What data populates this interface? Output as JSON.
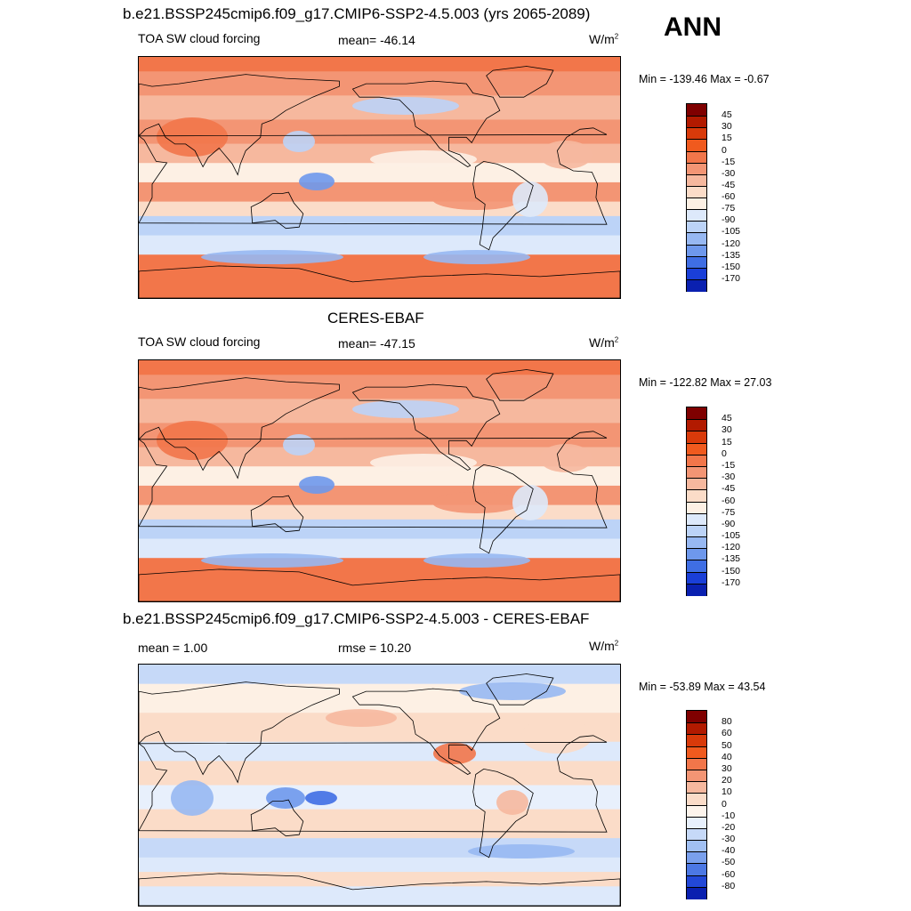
{
  "header": {
    "top_title": "b.e21.BSSP245cmip6.f09_g17.CMIP6-SSP2-4.5.003 (yrs 2065-2089)",
    "season": "ANN"
  },
  "chart_data": [
    {
      "type": "heatmap",
      "title": "b.e21.BSSP245cmip6.f09_g17.CMIP6-SSP2-4.5.003 (yrs 2065-2089)",
      "variable": "TOA SW cloud forcing",
      "stat_label": "mean= -46.14",
      "units_base": "W/m",
      "units_exp": "2",
      "minmax": "Min = -139.46 Max =  -0.67",
      "mean": -46.14,
      "min": -139.46,
      "max": -0.67,
      "colorbar_levels": [
        "45",
        "30",
        "15",
        "0",
        "-15",
        "-30",
        "-45",
        "-60",
        "-75",
        "-90",
        "-105",
        "-120",
        "-135",
        "-150",
        "-170"
      ]
    },
    {
      "type": "heatmap",
      "title": "CERES-EBAF",
      "variable": "TOA SW cloud forcing",
      "stat_label": "mean= -47.15",
      "units_base": "W/m",
      "units_exp": "2",
      "minmax": "Min = -122.82 Max =  27.03",
      "mean": -47.15,
      "min": -122.82,
      "max": 27.03,
      "colorbar_levels": [
        "45",
        "30",
        "15",
        "0",
        "-15",
        "-30",
        "-45",
        "-60",
        "-75",
        "-90",
        "-105",
        "-120",
        "-135",
        "-150",
        "-170"
      ]
    },
    {
      "type": "heatmap",
      "title": "b.e21.BSSP245cmip6.f09_g17.CMIP6-SSP2-4.5.003 - CERES-EBAF",
      "stat_left": "mean =   1.00",
      "stat_label": "rmse =  10.20",
      "units_base": "W/m",
      "units_exp": "2",
      "minmax": "Min = -53.89 Max =  43.54",
      "mean": 1.0,
      "rmse": 10.2,
      "min": -53.89,
      "max": 43.54,
      "colorbar_levels": [
        "80",
        "60",
        "50",
        "40",
        "30",
        "20",
        "10",
        "0",
        "-10",
        "-20",
        "-30",
        "-40",
        "-50",
        "-60",
        "-80"
      ]
    }
  ],
  "colors": {
    "abs_scale": [
      "#7f0000",
      "#b21a00",
      "#d93a0a",
      "#f05a1e",
      "#f2764a",
      "#f39574",
      "#f6b89e",
      "#fbdcc8",
      "#fdf0e4",
      "#dde9fb",
      "#bcd3f7",
      "#97b8f2",
      "#6e98ec",
      "#3f6ee4",
      "#1a3fd8",
      "#0a20b0",
      "#000080"
    ],
    "diff_scale": [
      "#7f0000",
      "#b21a00",
      "#d93a0a",
      "#f05a1e",
      "#f2764a",
      "#f39574",
      "#f6b89e",
      "#fbdcc8",
      "#fdf4ec",
      "#e8f0fc",
      "#c6d9f8",
      "#a1c0f3",
      "#7aa0ed",
      "#4c78e4",
      "#2248d8",
      "#0a20b0",
      "#000080"
    ]
  }
}
